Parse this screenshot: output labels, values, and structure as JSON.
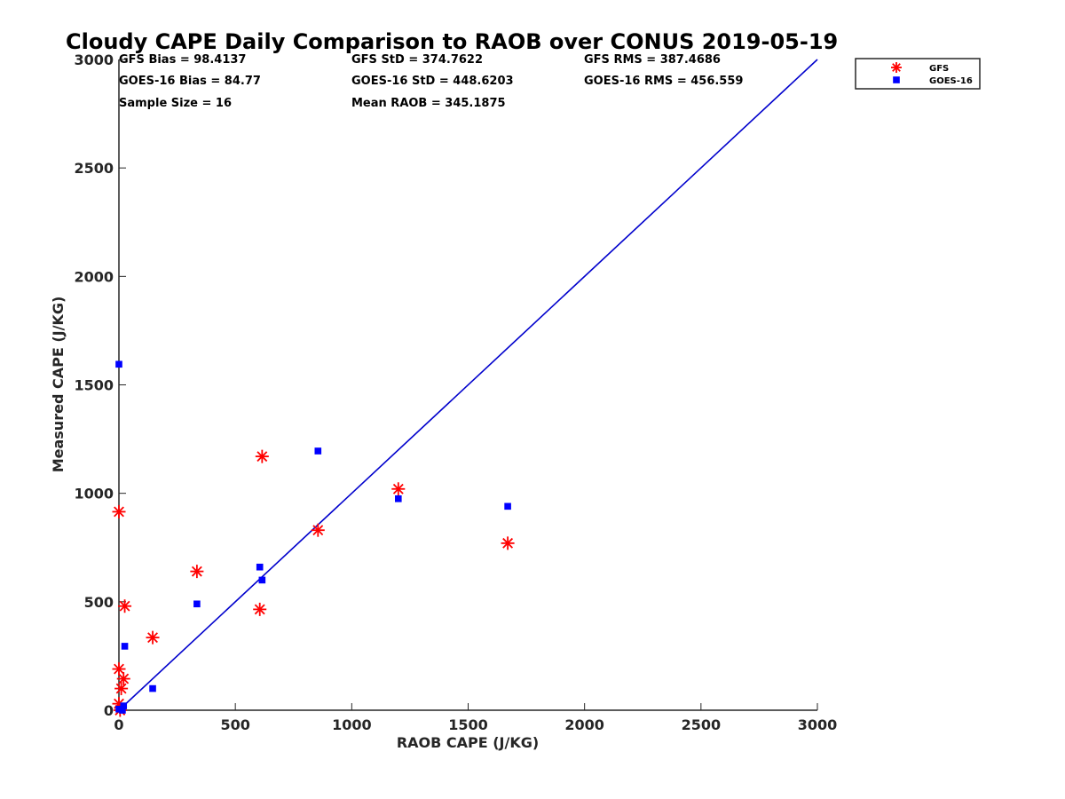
{
  "chart_data": {
    "type": "scatter",
    "title": "Cloudy CAPE Daily Comparison to RAOB over CONUS 2019-05-19",
    "xlabel": "RAOB CAPE (J/KG)",
    "ylabel": "Measured CAPE (J/KG)",
    "xlim": [
      0,
      3000
    ],
    "ylim": [
      0,
      3000
    ],
    "xticks": [
      0,
      500,
      1000,
      1500,
      2000,
      2500,
      3000
    ],
    "yticks": [
      0,
      500,
      1000,
      1500,
      2000,
      2500,
      3000
    ],
    "grid": false,
    "legend_position": "top-right",
    "stats": [
      "GFS Bias = 98.4137",
      "GFS StD = 374.7622",
      "GFS RMS = 387.4686",
      "GOES-16 Bias = 84.77",
      "GOES-16 StD = 448.6203",
      "GOES-16 RMS = 456.559",
      "Sample Size = 16",
      "Mean RAOB = 345.1875"
    ],
    "reference_line": {
      "x": [
        0,
        3000
      ],
      "y": [
        0,
        3000
      ],
      "color": "#0000cc"
    },
    "series": [
      {
        "name": "GFS",
        "marker": "asterisk",
        "color": "#ff0000",
        "points": [
          [
            0,
            915
          ],
          [
            0,
            190
          ],
          [
            0,
            30
          ],
          [
            5,
            0
          ],
          [
            10,
            100
          ],
          [
            20,
            145
          ],
          [
            25,
            480
          ],
          [
            145,
            335
          ],
          [
            335,
            640
          ],
          [
            605,
            465
          ],
          [
            615,
            1170
          ],
          [
            855,
            830
          ],
          [
            1200,
            1020
          ],
          [
            1670,
            770
          ]
        ]
      },
      {
        "name": "GOES-16",
        "marker": "square",
        "color": "#0000ff",
        "points": [
          [
            0,
            1595
          ],
          [
            0,
            5
          ],
          [
            15,
            0
          ],
          [
            20,
            20
          ],
          [
            25,
            295
          ],
          [
            145,
            100
          ],
          [
            335,
            490
          ],
          [
            605,
            660
          ],
          [
            615,
            600
          ],
          [
            855,
            1195
          ],
          [
            1200,
            975
          ],
          [
            1670,
            940
          ]
        ]
      }
    ]
  }
}
